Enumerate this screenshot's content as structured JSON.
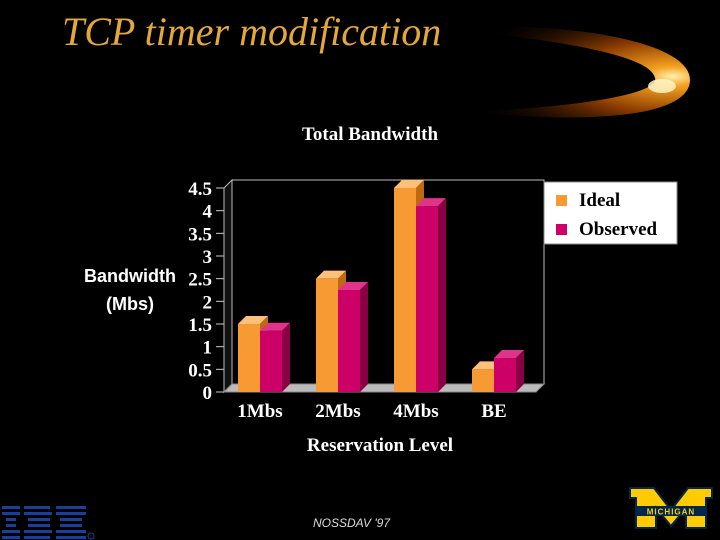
{
  "slide": {
    "title": "TCP timer modification",
    "footer": "NOSSDAV '97",
    "logo_left": "IBM",
    "logo_right": "MICHIGAN"
  },
  "colors": {
    "title": "#e3a73a",
    "ideal": "#f79a33",
    "observed": "#cc0066",
    "background": "#000000"
  },
  "chart_data": {
    "type": "bar",
    "title": "Total Bandwidth",
    "xlabel": "Reservation Level",
    "ylabel": [
      "Bandwidth",
      "(Mbs)"
    ],
    "categories": [
      "1Mbs",
      "2Mbs",
      "4Mbs",
      "BE"
    ],
    "series": [
      {
        "name": "Ideal",
        "values": [
          1.5,
          2.5,
          4.5,
          0.5
        ]
      },
      {
        "name": "Observed",
        "values": [
          1.35,
          2.25,
          4.1,
          0.75
        ]
      }
    ],
    "ylim": [
      0,
      4.5
    ],
    "yticks": [
      "0",
      "0.5",
      "1",
      "1.5",
      "2",
      "2.5",
      "3",
      "3.5",
      "4",
      "4.5"
    ],
    "legend": "right",
    "grid": false
  }
}
